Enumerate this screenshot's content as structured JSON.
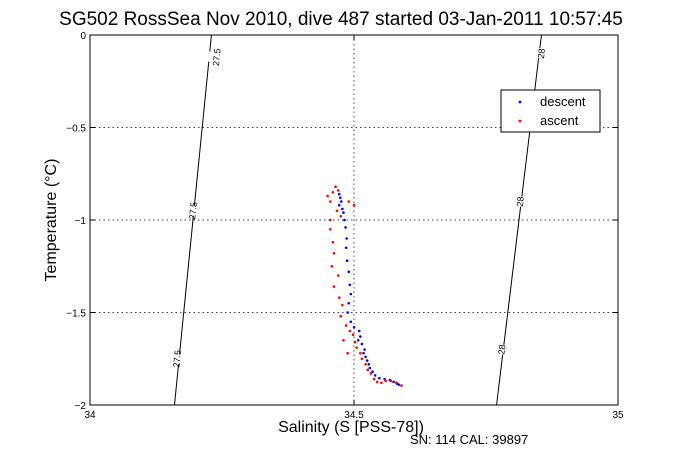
{
  "chart_data": {
    "type": "scatter",
    "title": "SG502 RossSea Nov 2010, dive 487 started 03-Jan-2011 10:57:45",
    "xlabel": "Salinity (S [PSS-78])",
    "ylabel": "Temperature (°C)",
    "xlim": [
      34,
      35
    ],
    "ylim": [
      -2,
      0
    ],
    "x_ticks": [
      34,
      34.5,
      35
    ],
    "y_ticks": [
      0,
      -0.5,
      -1,
      -1.5,
      -2
    ],
    "x_tick_labels": [
      "34",
      "34.5",
      "35"
    ],
    "y_tick_labels": [
      "0",
      "−0.5",
      "−1",
      "−1.5",
      "−2"
    ],
    "grid": true,
    "legend_position": "top-right",
    "isopycnals": [
      {
        "label": "27.5",
        "points": [
          [
            34.23,
            0
          ],
          [
            34.16,
            -2
          ]
        ],
        "label_positions": [
          [
            34.24,
            -0.12
          ],
          [
            34.195,
            -0.95
          ],
          [
            34.165,
            -1.75
          ]
        ]
      },
      {
        "label": "28",
        "points": [
          [
            34.855,
            0
          ],
          [
            34.77,
            -2
          ]
        ],
        "label_positions": [
          [
            34.855,
            -0.1
          ],
          [
            34.815,
            -0.9
          ],
          [
            34.78,
            -1.7
          ]
        ]
      }
    ],
    "series": [
      {
        "name": "descent",
        "color": "#0000ff",
        "points": [
          [
            34.472,
            -0.86
          ],
          [
            34.474,
            -0.88
          ],
          [
            34.476,
            -0.9
          ],
          [
            34.472,
            -0.92
          ],
          [
            34.478,
            -0.94
          ],
          [
            34.48,
            -0.96
          ],
          [
            34.482,
            -1.0
          ],
          [
            34.484,
            -1.04
          ],
          [
            34.486,
            -1.1
          ],
          [
            34.485,
            -1.15
          ],
          [
            34.487,
            -1.22
          ],
          [
            34.49,
            -1.28
          ],
          [
            34.492,
            -1.35
          ],
          [
            34.494,
            -1.4
          ],
          [
            34.49,
            -1.45
          ],
          [
            34.488,
            -1.5
          ],
          [
            34.494,
            -1.55
          ],
          [
            34.5,
            -1.58
          ],
          [
            34.51,
            -1.6
          ],
          [
            34.512,
            -1.63
          ],
          [
            34.508,
            -1.65
          ],
          [
            34.515,
            -1.67
          ],
          [
            34.52,
            -1.7
          ],
          [
            34.518,
            -1.72
          ],
          [
            34.522,
            -1.74
          ],
          [
            34.525,
            -1.76
          ],
          [
            34.528,
            -1.78
          ],
          [
            34.53,
            -1.8
          ],
          [
            34.535,
            -1.82
          ],
          [
            34.54,
            -1.84
          ],
          [
            34.548,
            -1.855
          ],
          [
            34.558,
            -1.86
          ],
          [
            34.568,
            -1.865
          ],
          [
            34.575,
            -1.875
          ],
          [
            34.582,
            -1.885
          ],
          [
            34.585,
            -1.89
          ]
        ]
      },
      {
        "name": "ascent",
        "color": "#ff0000",
        "points": [
          [
            34.45,
            -0.87
          ],
          [
            34.455,
            -0.9
          ],
          [
            34.46,
            -0.85
          ],
          [
            34.465,
            -0.82
          ],
          [
            34.47,
            -0.84
          ],
          [
            34.468,
            -0.95
          ],
          [
            34.455,
            -1.0
          ],
          [
            34.475,
            -0.98
          ],
          [
            34.49,
            -0.9
          ],
          [
            34.5,
            -0.92
          ],
          [
            34.455,
            -1.05
          ],
          [
            34.46,
            -1.12
          ],
          [
            34.462,
            -1.18
          ],
          [
            34.458,
            -1.25
          ],
          [
            34.47,
            -1.3
          ],
          [
            34.462,
            -1.36
          ],
          [
            34.472,
            -1.42
          ],
          [
            34.478,
            -1.46
          ],
          [
            34.475,
            -1.52
          ],
          [
            34.485,
            -1.57
          ],
          [
            34.492,
            -1.6
          ],
          [
            34.498,
            -1.62
          ],
          [
            34.502,
            -1.66
          ],
          [
            34.505,
            -1.69
          ],
          [
            34.512,
            -1.72
          ],
          [
            34.515,
            -1.75
          ],
          [
            34.522,
            -1.78
          ],
          [
            34.526,
            -1.81
          ],
          [
            34.532,
            -1.83
          ],
          [
            34.538,
            -1.86
          ],
          [
            34.544,
            -1.875
          ],
          [
            34.552,
            -1.88
          ],
          [
            34.56,
            -1.87
          ],
          [
            34.57,
            -1.87
          ],
          [
            34.58,
            -1.88
          ],
          [
            34.59,
            -1.895
          ],
          [
            34.488,
            -1.72
          ],
          [
            34.48,
            -1.65
          ]
        ]
      }
    ]
  },
  "footer": {
    "sn_label": "SN: 114  CAL: 39897"
  }
}
